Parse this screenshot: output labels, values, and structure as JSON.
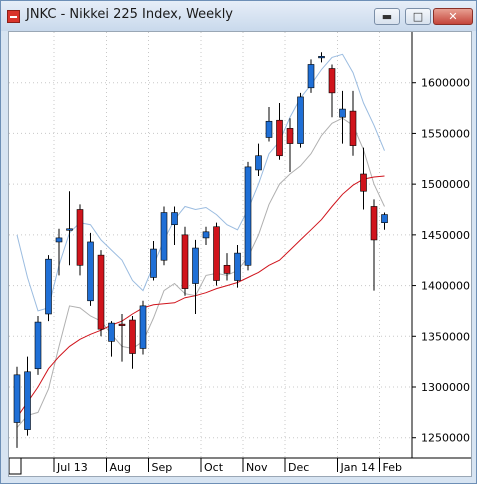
{
  "window": {
    "title": "JNKC - Nikkei 225 Index, Weekly",
    "minimize_icon": "minimize-icon",
    "maximize_icon": "maximize-icon",
    "close_icon": "close-icon"
  },
  "chart_data": {
    "type": "candlestick",
    "title": "",
    "xlabel": "",
    "ylabel": "",
    "ylim": [
      1230000,
      1650000
    ],
    "y_ticks": [
      1250000,
      1300000,
      1350000,
      1400000,
      1450000,
      1500000,
      1550000,
      1600000
    ],
    "y_tick_labels": [
      "1250000",
      "1300000",
      "1350000",
      "1400000",
      "1450000",
      "1500000",
      "1550000",
      "1600000"
    ],
    "x_tick_labels": [
      {
        "label": "Jul 13",
        "index": 4
      },
      {
        "label": "Aug",
        "index": 9
      },
      {
        "label": "Sep",
        "index": 13
      },
      {
        "label": "Oct",
        "index": 18
      },
      {
        "label": "Nov",
        "index": 22
      },
      {
        "label": "Dec",
        "index": 26
      },
      {
        "label": "Jan 14",
        "index": 31
      },
      {
        "label": "Feb",
        "index": 35
      }
    ],
    "grid": true,
    "colors": {
      "up": "#1f6fd6",
      "down": "#d0141c",
      "doji": "#d0141c",
      "wick": "#000000",
      "ma_fast": "#d0141c",
      "band": "#9bbce0",
      "band_lower": "#b0b0b0"
    },
    "candles": [
      {
        "open": 1265000,
        "high": 1320000,
        "low": 1240000,
        "close": 1312000
      },
      {
        "open": 1258000,
        "high": 1330000,
        "low": 1252000,
        "close": 1315000
      },
      {
        "open": 1318000,
        "high": 1370000,
        "low": 1312000,
        "close": 1364000
      },
      {
        "open": 1372000,
        "high": 1430000,
        "low": 1365000,
        "close": 1426000
      },
      {
        "open": 1443000,
        "high": 1456000,
        "low": 1410000,
        "close": 1447000
      },
      {
        "open": 1455000,
        "high": 1493000,
        "low": 1420000,
        "close": 1456000
      },
      {
        "open": 1475000,
        "high": 1480000,
        "low": 1410000,
        "close": 1420000
      },
      {
        "open": 1385000,
        "high": 1452000,
        "low": 1380000,
        "close": 1443000
      },
      {
        "open": 1430000,
        "high": 1435000,
        "low": 1350000,
        "close": 1357000
      },
      {
        "open": 1345000,
        "high": 1365000,
        "low": 1330000,
        "close": 1363000
      },
      {
        "open": 1362000,
        "high": 1372000,
        "low": 1325000,
        "close": 1362000
      },
      {
        "open": 1366000,
        "high": 1370000,
        "low": 1318000,
        "close": 1333000
      },
      {
        "open": 1338000,
        "high": 1385000,
        "low": 1332000,
        "close": 1380000
      },
      {
        "open": 1408000,
        "high": 1444000,
        "low": 1405000,
        "close": 1436000
      },
      {
        "open": 1425000,
        "high": 1478000,
        "low": 1420000,
        "close": 1472000
      },
      {
        "open": 1460000,
        "high": 1478000,
        "low": 1440000,
        "close": 1472000
      },
      {
        "open": 1450000,
        "high": 1458000,
        "low": 1390000,
        "close": 1397000
      },
      {
        "open": 1402000,
        "high": 1445000,
        "low": 1372000,
        "close": 1437000
      },
      {
        "open": 1447000,
        "high": 1458000,
        "low": 1440000,
        "close": 1453000
      },
      {
        "open": 1458000,
        "high": 1462000,
        "low": 1400000,
        "close": 1405000
      },
      {
        "open": 1420000,
        "high": 1432000,
        "low": 1405000,
        "close": 1412000
      },
      {
        "open": 1405000,
        "high": 1440000,
        "low": 1398000,
        "close": 1432000
      },
      {
        "open": 1420000,
        "high": 1522000,
        "low": 1415000,
        "close": 1517000
      },
      {
        "open": 1514000,
        "high": 1540000,
        "low": 1508000,
        "close": 1528000
      },
      {
        "open": 1546000,
        "high": 1576000,
        "low": 1542000,
        "close": 1562000
      },
      {
        "open": 1563000,
        "high": 1580000,
        "low": 1524000,
        "close": 1528000
      },
      {
        "open": 1555000,
        "high": 1565000,
        "low": 1512000,
        "close": 1540000
      },
      {
        "open": 1540000,
        "high": 1590000,
        "low": 1536000,
        "close": 1586000
      },
      {
        "open": 1595000,
        "high": 1623000,
        "low": 1590000,
        "close": 1618000
      },
      {
        "open": 1625000,
        "high": 1630000,
        "low": 1620000,
        "close": 1626000
      },
      {
        "open": 1614000,
        "high": 1618000,
        "low": 1566000,
        "close": 1590000
      },
      {
        "open": 1566000,
        "high": 1592000,
        "low": 1540000,
        "close": 1574000
      },
      {
        "open": 1572000,
        "high": 1592000,
        "low": 1528000,
        "close": 1538000
      },
      {
        "open": 1510000,
        "high": 1536000,
        "low": 1475000,
        "close": 1493000
      },
      {
        "open": 1478000,
        "high": 1485000,
        "low": 1395000,
        "close": 1445000
      },
      {
        "open": 1462000,
        "high": 1472000,
        "low": 1455000,
        "close": 1470000
      }
    ],
    "ma_fast": [
      1270000,
      1285000,
      1300000,
      1318000,
      1330000,
      1340000,
      1347000,
      1352000,
      1356000,
      1361000,
      1365000,
      1372000,
      1378000,
      1381000,
      1382000,
      1383000,
      1388000,
      1390000,
      1393000,
      1397000,
      1400000,
      1403000,
      1408000,
      1413000,
      1420000,
      1425000,
      1435000,
      1445000,
      1455000,
      1465000,
      1478000,
      1490000,
      1499000,
      1505000,
      1507000,
      1508000
    ],
    "band_upper": [
      1450000,
      1408000,
      1375000,
      1378000,
      1420000,
      1452000,
      1462000,
      1460000,
      1445000,
      1435000,
      1425000,
      1405000,
      1395000,
      1420000,
      1445000,
      1465000,
      1478000,
      1475000,
      1477000,
      1470000,
      1460000,
      1455000,
      1475000,
      1500000,
      1530000,
      1542000,
      1566000,
      1585000,
      1598000,
      1613000,
      1625000,
      1628000,
      1610000,
      1580000,
      1558000,
      1533000
    ],
    "band_lower": [
      1260000,
      1272000,
      1275000,
      1298000,
      1340000,
      1380000,
      1378000,
      1370000,
      1365000,
      1352000,
      1340000,
      1338000,
      1345000,
      1368000,
      1395000,
      1402000,
      1392000,
      1390000,
      1410000,
      1412000,
      1410000,
      1415000,
      1428000,
      1450000,
      1480000,
      1500000,
      1510000,
      1518000,
      1530000,
      1548000,
      1560000,
      1565000,
      1558000,
      1534000,
      1500000,
      1478000
    ]
  }
}
